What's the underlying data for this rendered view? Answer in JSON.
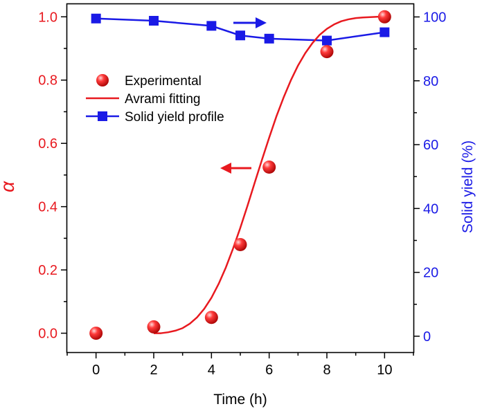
{
  "chart_data": {
    "type": "line",
    "xlabel": "Time (h)",
    "ylabel_left": "α",
    "ylabel_right": "Solid yield (%)",
    "xlim": [
      -1,
      11
    ],
    "ylim_left": [
      -0.06,
      1.04
    ],
    "ylim_right": [
      -5,
      104
    ],
    "x_ticks": [
      0,
      2,
      4,
      6,
      8,
      10
    ],
    "y_ticks_left": [
      0.0,
      0.2,
      0.4,
      0.6,
      0.8,
      1.0
    ],
    "y_tick_labels_left": [
      "0.0",
      "0.2",
      "0.4",
      "0.6",
      "0.8",
      "1.0"
    ],
    "y_ticks_right": [
      0,
      20,
      40,
      60,
      80,
      100
    ],
    "legend_position": "upper-left",
    "series": [
      {
        "name": "Experimental",
        "kind": "scatter",
        "axis": "left",
        "color": "#e8191f",
        "x": [
          0,
          2,
          4,
          5,
          6,
          8,
          10
        ],
        "y": [
          0.0,
          0.02,
          0.05,
          0.28,
          0.525,
          0.89,
          1.0
        ]
      },
      {
        "name": "Avrami fitting",
        "kind": "line",
        "axis": "left",
        "color": "#e8191f",
        "x": [
          2.0,
          2.25,
          2.5,
          2.75,
          3.0,
          3.25,
          3.5,
          3.75,
          4.0,
          4.25,
          4.5,
          4.75,
          5.0,
          5.25,
          5.5,
          5.75,
          6.0,
          6.25,
          6.5,
          6.75,
          7.0,
          7.25,
          7.5,
          7.75,
          8.0,
          8.25,
          8.5,
          8.75,
          9.0,
          9.25,
          9.5,
          9.75,
          10.0
        ],
        "y": [
          0.0,
          0.0,
          0.003,
          0.008,
          0.016,
          0.03,
          0.05,
          0.077,
          0.112,
          0.156,
          0.208,
          0.268,
          0.333,
          0.403,
          0.476,
          0.548,
          0.618,
          0.685,
          0.745,
          0.799,
          0.846,
          0.885,
          0.917,
          0.943,
          0.962,
          0.976,
          0.986,
          0.992,
          0.996,
          0.998,
          0.999,
          1.0,
          1.0
        ]
      },
      {
        "name": "Solid yield profile",
        "kind": "line-marker",
        "axis": "right",
        "color": "#1a1ae6",
        "x": [
          0,
          2,
          4,
          5,
          6,
          8,
          10
        ],
        "y": [
          99.5,
          98.8,
          97.2,
          94.2,
          93.2,
          92.6,
          95.2
        ]
      }
    ],
    "annotations": [
      {
        "type": "arrow",
        "direction": "left",
        "color": "#e8191f",
        "note": "points to left axis"
      },
      {
        "type": "arrow",
        "direction": "right",
        "color": "#1a1ae6",
        "note": "points to right axis"
      }
    ]
  }
}
